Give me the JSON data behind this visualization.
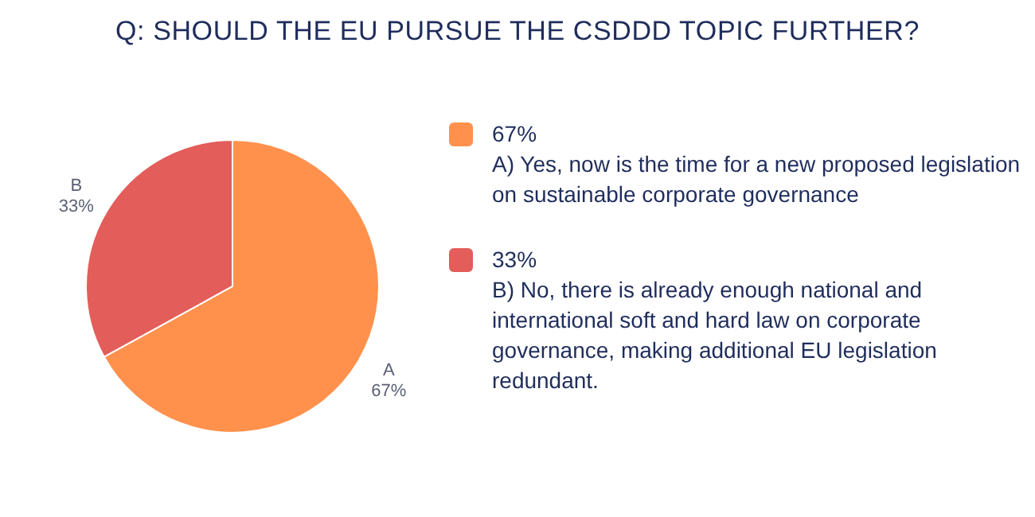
{
  "chart_data": {
    "type": "pie",
    "title": "Q: SHOULD THE EU PURSUE THE CSDDD TOPIC FURTHER?",
    "categories": [
      "A",
      "B"
    ],
    "values": [
      67,
      33
    ],
    "value_labels": [
      "67%",
      "33%"
    ],
    "colors": [
      "#ff914d",
      "#e35d5a"
    ],
    "annotations": [
      "A) Yes, now is the time for a new proposed legislation on sustainable corporate governance",
      "B) No, there is already enough national and international soft and hard law on corporate governance, making additional EU legislation redundant."
    ]
  }
}
